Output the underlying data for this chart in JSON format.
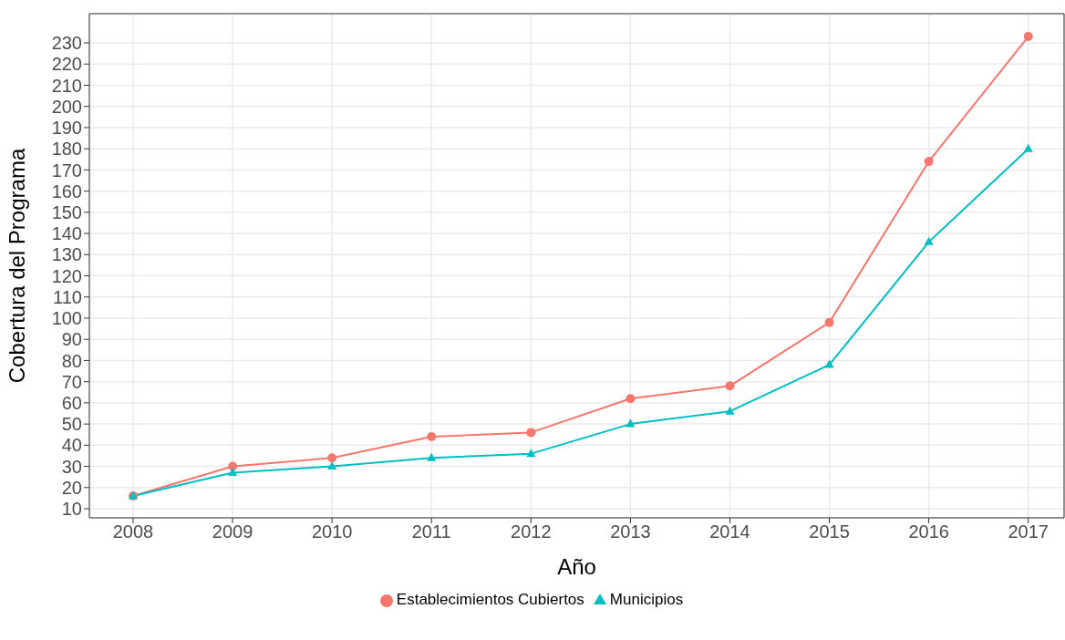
{
  "chart_data": {
    "type": "line",
    "xlabel": "Año",
    "ylabel": "Cobertura del Programa",
    "x": [
      2008,
      2009,
      2010,
      2011,
      2012,
      2013,
      2014,
      2015,
      2016,
      2017
    ],
    "series": [
      {
        "name": "Establecimientos Cubiertos",
        "color": "#f8766d",
        "marker": "circle",
        "values": [
          16,
          30,
          34,
          44,
          46,
          62,
          68,
          98,
          174,
          233
        ]
      },
      {
        "name": "Municipios",
        "color": "#00bfc4",
        "marker": "triangle",
        "values": [
          16,
          27,
          30,
          34,
          36,
          50,
          56,
          78,
          136,
          180
        ]
      }
    ],
    "xlim": [
      2007.56,
      2017.36
    ],
    "xticks": [
      2008,
      2009,
      2010,
      2011,
      2012,
      2013,
      2014,
      2015,
      2016,
      2017
    ],
    "ylim": [
      5.7,
      243.8
    ],
    "yticks": [
      10,
      20,
      30,
      40,
      50,
      60,
      70,
      80,
      90,
      100,
      110,
      120,
      130,
      140,
      150,
      160,
      170,
      180,
      190,
      200,
      210,
      220,
      230
    ],
    "grid": true,
    "legend": "bottom",
    "line_style": "solid"
  }
}
